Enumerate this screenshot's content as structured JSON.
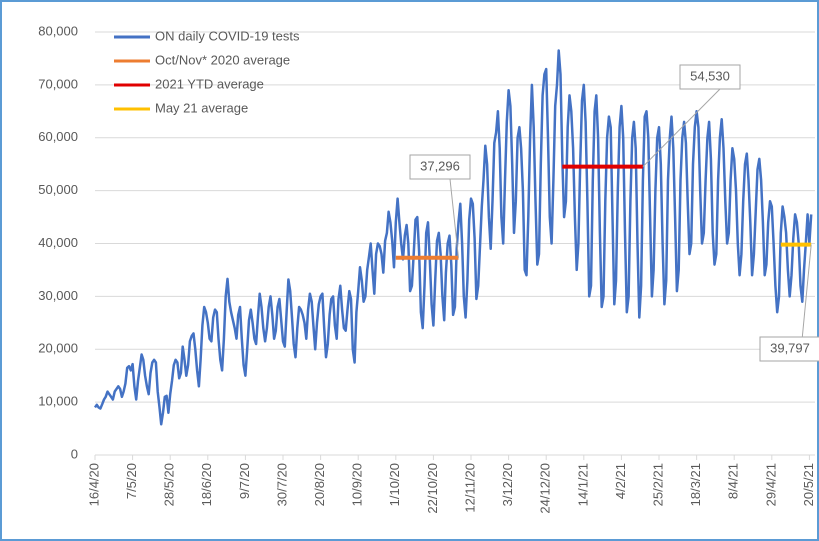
{
  "chart_data": {
    "type": "line",
    "series": [
      {
        "name": "ON daily COVID-19 tests",
        "color": "#4472c4",
        "values": [
          9000,
          9500,
          9000,
          8800,
          9600,
          10500,
          11000,
          12000,
          11500,
          11000,
          10500,
          12000,
          12500,
          13000,
          12500,
          11000,
          12000,
          13500,
          16500,
          16800,
          16000,
          17200,
          13000,
          10500,
          14000,
          16500,
          19000,
          18000,
          15000,
          13000,
          11500,
          15500,
          17500,
          18000,
          17500,
          12000,
          9000,
          5800,
          8000,
          11000,
          11200,
          8000,
          11500,
          14000,
          17000,
          18000,
          17500,
          14500,
          15500,
          20500,
          18000,
          15000,
          17000,
          21500,
          22500,
          23000,
          20000,
          16000,
          13000,
          18000,
          24500,
          28000,
          27000,
          25000,
          22000,
          21500,
          26000,
          27500,
          27000,
          22000,
          18000,
          16000,
          22000,
          30000,
          33300,
          29000,
          27000,
          25500,
          24000,
          22000,
          26500,
          28000,
          22000,
          17000,
          15000,
          20000,
          25500,
          27500,
          25000,
          22000,
          21000,
          26000,
          30500,
          28000,
          24000,
          21500,
          24000,
          28000,
          30000,
          26500,
          22000,
          23500,
          28000,
          29500,
          25500,
          21500,
          20500,
          27000,
          33200,
          31000,
          26000,
          21000,
          18500,
          24000,
          28000,
          27500,
          26500,
          25000,
          22000,
          27500,
          30500,
          29000,
          24500,
          20000,
          25000,
          28500,
          30000,
          30500,
          24000,
          18500,
          21000,
          26500,
          29500,
          30000,
          24500,
          22000,
          29500,
          32000,
          27500,
          24000,
          23500,
          27500,
          31000,
          29500,
          20000,
          17500,
          27000,
          31000,
          35500,
          33000,
          29000,
          30000,
          35000,
          37500,
          40000,
          35000,
          30500,
          38000,
          40000,
          39500,
          38000,
          34500,
          40500,
          42000,
          46000,
          44000,
          40500,
          35500,
          44000,
          48500,
          44000,
          40000,
          37000,
          41500,
          43500,
          40000,
          31000,
          32000,
          38000,
          44500,
          45000,
          38500,
          27000,
          24000,
          32000,
          42000,
          44000,
          37000,
          28500,
          24500,
          33000,
          40500,
          42000,
          38000,
          30000,
          25500,
          34500,
          40000,
          41500,
          36000,
          26500,
          28000,
          39000,
          44000,
          47500,
          40000,
          30000,
          26000,
          33000,
          44500,
          48500,
          47500,
          41000,
          29500,
          32000,
          39500,
          47000,
          52000,
          58500,
          55000,
          45000,
          39000,
          48000,
          59000,
          61000,
          65000,
          58000,
          45000,
          40000,
          52000,
          63000,
          69000,
          66000,
          55000,
          42000,
          48000,
          60000,
          62000,
          58000,
          50000,
          35000,
          34000,
          45000,
          60000,
          70000,
          62000,
          48000,
          36000,
          38000,
          55000,
          68000,
          72000,
          73000,
          60000,
          45000,
          40000,
          52000,
          66000,
          70000,
          76500,
          72000,
          56000,
          45000,
          48000,
          62000,
          68000,
          65000,
          58000,
          45000,
          35000,
          40000,
          55000,
          67000,
          70000,
          63000,
          48000,
          30000,
          32000,
          52000,
          65000,
          68000,
          60000,
          42000,
          28000,
          30000,
          48000,
          60000,
          64000,
          62000,
          45000,
          28500,
          33000,
          50000,
          62000,
          66000,
          60000,
          42000,
          27000,
          30000,
          48000,
          60000,
          63000,
          58000,
          40000,
          26000,
          32000,
          52000,
          64000,
          65000,
          60000,
          45000,
          30000,
          35000,
          50000,
          60000,
          62000,
          55000,
          40000,
          28500,
          33000,
          52000,
          60000,
          64000,
          58000,
          45000,
          31000,
          35000,
          52000,
          60000,
          63000,
          59000,
          48000,
          38000,
          40000,
          55000,
          62000,
          65000,
          62000,
          50000,
          40000,
          42000,
          52000,
          60000,
          63000,
          56000,
          42000,
          36000,
          38000,
          52000,
          60000,
          63500,
          58000,
          48000,
          40000,
          42000,
          52000,
          58000,
          56000,
          50000,
          40000,
          34000,
          38000,
          48000,
          55000,
          57000,
          52000,
          44000,
          34000,
          38000,
          46000,
          54000,
          56000,
          52000,
          44000,
          34000,
          36000,
          44000,
          48000,
          47000,
          40000,
          32000,
          27000,
          30000,
          42000,
          47000,
          45000,
          42000,
          35000,
          30000,
          34000,
          41000,
          45500,
          44000,
          40000,
          32000,
          29000,
          35000,
          40000,
          45500,
          40000,
          45500
        ]
      }
    ],
    "x": [
      0,
      1,
      2,
      3,
      4,
      5,
      6,
      7,
      8,
      9,
      10,
      11,
      12,
      13,
      14,
      15,
      16,
      17,
      18,
      19,
      20,
      21,
      22,
      23,
      24,
      25,
      26,
      27,
      28,
      29,
      30,
      31,
      32,
      33,
      34,
      35,
      36,
      37,
      38,
      39,
      40,
      41,
      42,
      43,
      44,
      45,
      46,
      47,
      48,
      49,
      50,
      51,
      52,
      53,
      54,
      55,
      56,
      57,
      58,
      59,
      60,
      61,
      62,
      63,
      64,
      65,
      66,
      67,
      68,
      69,
      70,
      71,
      72,
      73,
      74,
      75,
      76,
      77,
      78,
      79,
      80,
      81,
      82,
      83,
      84,
      85,
      86,
      87,
      88,
      89,
      90,
      91,
      92,
      93,
      94,
      95,
      96,
      97,
      98,
      99,
      100,
      101,
      102,
      103,
      104,
      105,
      106,
      107,
      108,
      109,
      110,
      111,
      112,
      113,
      114,
      115,
      116,
      117,
      118,
      119,
      120,
      121,
      122,
      123,
      124,
      125,
      126,
      127,
      128,
      129,
      130,
      131,
      132,
      133,
      134,
      135,
      136,
      137,
      138,
      139,
      140,
      141,
      142,
      143,
      144,
      145,
      146,
      147,
      148,
      149,
      150,
      151,
      152,
      153,
      154,
      155,
      156,
      157,
      158,
      159,
      160,
      161,
      162,
      163,
      164,
      165,
      166,
      167,
      168,
      169,
      170,
      171,
      172,
      173,
      174,
      175,
      176,
      177,
      178,
      179,
      180,
      181,
      182,
      183,
      184,
      185,
      186,
      187,
      188,
      189,
      190,
      191,
      192,
      193,
      194,
      195,
      196,
      197,
      198,
      199,
      200,
      201,
      202,
      203,
      204,
      205,
      206,
      207,
      208,
      209,
      210,
      211,
      212,
      213,
      214,
      215,
      216,
      217,
      218,
      219,
      220,
      221,
      222,
      223,
      224,
      225,
      226,
      227,
      228,
      229,
      230,
      231,
      232,
      233,
      234,
      235,
      236,
      237,
      238,
      239,
      240,
      241,
      242,
      243,
      244,
      245,
      246,
      247,
      248,
      249,
      250,
      251,
      252,
      253,
      254,
      255,
      256,
      257,
      258,
      259,
      260,
      261,
      262,
      263,
      264,
      265,
      266,
      267,
      268,
      269,
      270,
      271,
      272,
      273,
      274,
      275,
      276,
      277,
      278,
      279,
      280,
      281,
      282,
      283,
      284,
      285,
      286,
      287,
      288,
      289,
      290,
      291,
      292,
      293,
      294,
      295,
      296,
      297,
      298,
      299,
      300,
      301,
      302,
      303,
      304,
      305,
      306,
      307,
      308,
      309,
      310,
      311,
      312,
      313,
      314,
      315,
      316,
      317,
      318,
      319,
      320,
      321,
      322,
      323,
      324,
      325,
      326,
      327,
      328,
      329,
      330,
      331,
      332,
      333,
      334,
      335,
      336,
      337,
      338,
      339,
      340,
      341,
      342,
      343,
      344,
      345,
      346,
      347,
      348,
      349,
      350,
      351,
      352,
      353,
      354,
      355,
      356,
      357,
      358,
      359,
      360,
      361,
      362,
      363,
      364,
      365,
      366,
      367,
      368,
      369,
      370,
      371,
      372,
      373,
      374,
      375,
      376,
      377,
      378,
      379,
      380,
      381,
      382,
      383,
      384,
      385,
      386,
      387,
      388,
      389,
      390,
      391,
      392,
      393,
      394,
      395,
      396,
      397,
      398,
      399,
      400
    ],
    "xlim": [
      0,
      401
    ],
    "xticks": [
      {
        "value": 0,
        "label": "16/4/20"
      },
      {
        "value": 21,
        "label": "7/5/20"
      },
      {
        "value": 42,
        "label": "28/5/20"
      },
      {
        "value": 63,
        "label": "18/6/20"
      },
      {
        "value": 84,
        "label": "9/7/20"
      },
      {
        "value": 105,
        "label": "30/7/20"
      },
      {
        "value": 126,
        "label": "20/8/20"
      },
      {
        "value": 147,
        "label": "10/9/20"
      },
      {
        "value": 168,
        "label": "1/10/20"
      },
      {
        "value": 189,
        "label": "22/10/20"
      },
      {
        "value": 210,
        "label": "12/11/20"
      },
      {
        "value": 231,
        "label": "3/12/20"
      },
      {
        "value": 252,
        "label": "24/12/20"
      },
      {
        "value": 273,
        "label": "14/1/21"
      },
      {
        "value": 294,
        "label": "4/2/21"
      },
      {
        "value": 315,
        "label": "25/2/21"
      },
      {
        "value": 336,
        "label": "18/3/21"
      },
      {
        "value": 357,
        "label": "8/4/21"
      },
      {
        "value": 378,
        "label": "29/4/21"
      },
      {
        "value": 399,
        "label": "20/5/21"
      }
    ],
    "ylim": [
      0,
      80000
    ],
    "yticks": [
      0,
      {
        "value": 10000,
        "label": "10,000"
      },
      {
        "value": 20000,
        "label": "20,000"
      },
      {
        "value": 30000,
        "label": "30,000"
      },
      {
        "value": 40000,
        "label": "40,000"
      },
      {
        "value": 50000,
        "label": "50,000"
      },
      {
        "value": 60000,
        "label": "60,000"
      },
      {
        "value": 70000,
        "label": "70,000"
      },
      {
        "value": 80000,
        "label": "80,000"
      }
    ],
    "grid": true,
    "reference_lines": [
      {
        "name": "Oct/Nov* 2020 average",
        "color": "#ed7d31",
        "value": 37296,
        "value_label": "37,296",
        "x_range": [
          168,
          203
        ]
      },
      {
        "name": "2021 YTD average",
        "color": "#e00000",
        "value": 54530,
        "value_label": "54,530",
        "x_range": [
          261,
          306
        ]
      },
      {
        "name": "May 21 average",
        "color": "#ffc000",
        "value": 39797,
        "value_label": "39,797",
        "x_range": [
          383,
          400
        ]
      }
    ]
  }
}
